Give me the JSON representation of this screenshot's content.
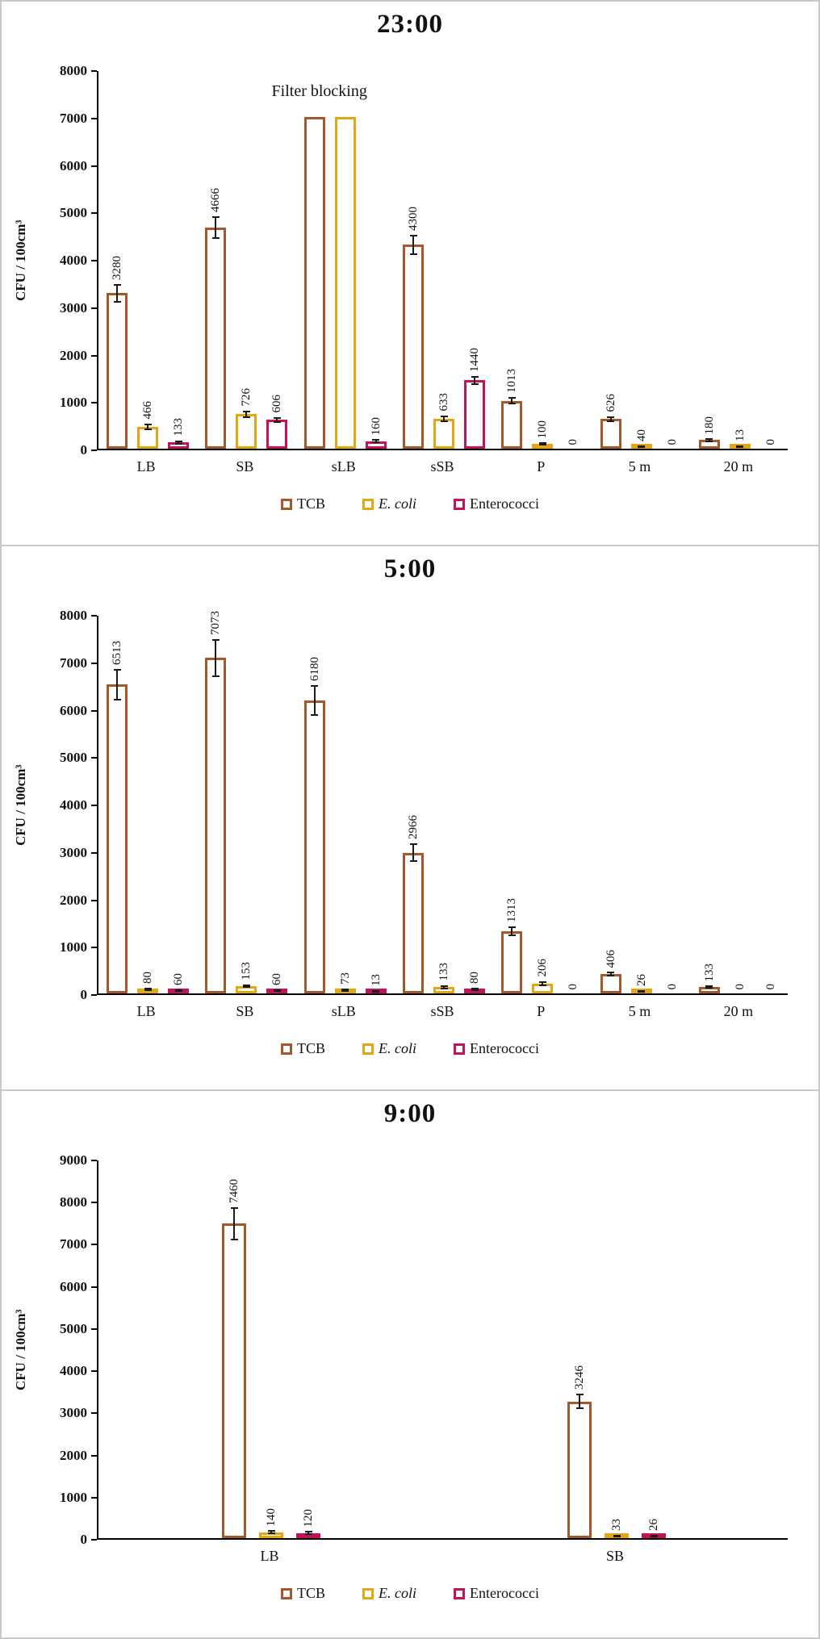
{
  "chart_data": [
    {
      "type": "bar",
      "title": "23:00",
      "ylabel": "CFU / 100cm³",
      "ymax": 8000,
      "ystep": 1000,
      "grid": false,
      "legend_position": "bottom",
      "annotation": {
        "text": "Filter blocking",
        "category_index": 2
      },
      "categories": [
        "LB",
        "SB",
        "sLB",
        "sSB",
        "P",
        "5 m",
        "20 m"
      ],
      "series": [
        {
          "name": "TCB",
          "color": "#A4582C",
          "italic": false,
          "values": [
            3280,
            4666,
            7000,
            4300,
            1013,
            626,
            180
          ],
          "labels": [
            "3280",
            "4666",
            "",
            "4300",
            "1013",
            "626",
            "180"
          ],
          "err": [
            180,
            220,
            0,
            200,
            60,
            40,
            20
          ]
        },
        {
          "name": "E. coli",
          "color": "#E2A713",
          "italic": true,
          "values": [
            466,
            726,
            7000,
            633,
            100,
            40,
            13
          ],
          "labels": [
            "466",
            "726",
            "",
            "633",
            "100",
            "40",
            "13"
          ],
          "err": [
            50,
            60,
            0,
            55,
            15,
            8,
            4
          ]
        },
        {
          "name": "Enterococci",
          "color": "#C2125A",
          "italic": false,
          "values": [
            133,
            606,
            160,
            1440,
            0,
            0,
            0
          ],
          "labels": [
            "133",
            "606",
            "160",
            "1440",
            "0",
            "0",
            "0"
          ],
          "err": [
            25,
            45,
            25,
            75,
            0,
            0,
            0
          ]
        }
      ]
    },
    {
      "type": "bar",
      "title": "5:00",
      "ylabel": "CFU / 100cm³",
      "ymax": 8000,
      "ystep": 1000,
      "grid": false,
      "legend_position": "bottom",
      "categories": [
        "LB",
        "SB",
        "sLB",
        "sSB",
        "P",
        "5 m",
        "20 m"
      ],
      "series": [
        {
          "name": "TCB",
          "color": "#A4582C",
          "italic": false,
          "values": [
            6513,
            7073,
            6180,
            2966,
            1313,
            406,
            133
          ],
          "labels": [
            "6513",
            "7073",
            "6180",
            "2966",
            "1313",
            "406",
            "133"
          ],
          "err": [
            320,
            380,
            300,
            180,
            90,
            30,
            15
          ]
        },
        {
          "name": "E. coli",
          "color": "#E2A713",
          "italic": true,
          "values": [
            80,
            153,
            73,
            133,
            206,
            26,
            0
          ],
          "labels": [
            "80",
            "153",
            "73",
            "133",
            "206",
            "26",
            "0"
          ],
          "err": [
            15,
            25,
            15,
            25,
            35,
            8,
            0
          ]
        },
        {
          "name": "Enterococci",
          "color": "#C2125A",
          "italic": false,
          "values": [
            60,
            60,
            13,
            80,
            0,
            0,
            0
          ],
          "labels": [
            "60",
            "60",
            "13",
            "80",
            "0",
            "0",
            "0"
          ],
          "err": [
            12,
            12,
            4,
            15,
            0,
            0,
            0
          ]
        }
      ]
    },
    {
      "type": "bar",
      "title": "9:00",
      "ylabel": "CFU / 100cm³",
      "ymax": 9000,
      "ystep": 1000,
      "grid": false,
      "legend_position": "bottom",
      "categories": [
        "LB",
        "SB"
      ],
      "series": [
        {
          "name": "TCB",
          "color": "#A4582C",
          "italic": false,
          "values": [
            7460,
            3246
          ],
          "labels": [
            "7460",
            "3246"
          ],
          "err": [
            380,
            160
          ]
        },
        {
          "name": "E. coli",
          "color": "#E2A713",
          "italic": true,
          "values": [
            140,
            33
          ],
          "labels": [
            "140",
            "33"
          ],
          "err": [
            30,
            8
          ]
        },
        {
          "name": "Enterococci",
          "color": "#C2125A",
          "italic": false,
          "values": [
            120,
            26
          ],
          "labels": [
            "120",
            "26"
          ],
          "err": [
            25,
            6
          ]
        }
      ]
    }
  ]
}
